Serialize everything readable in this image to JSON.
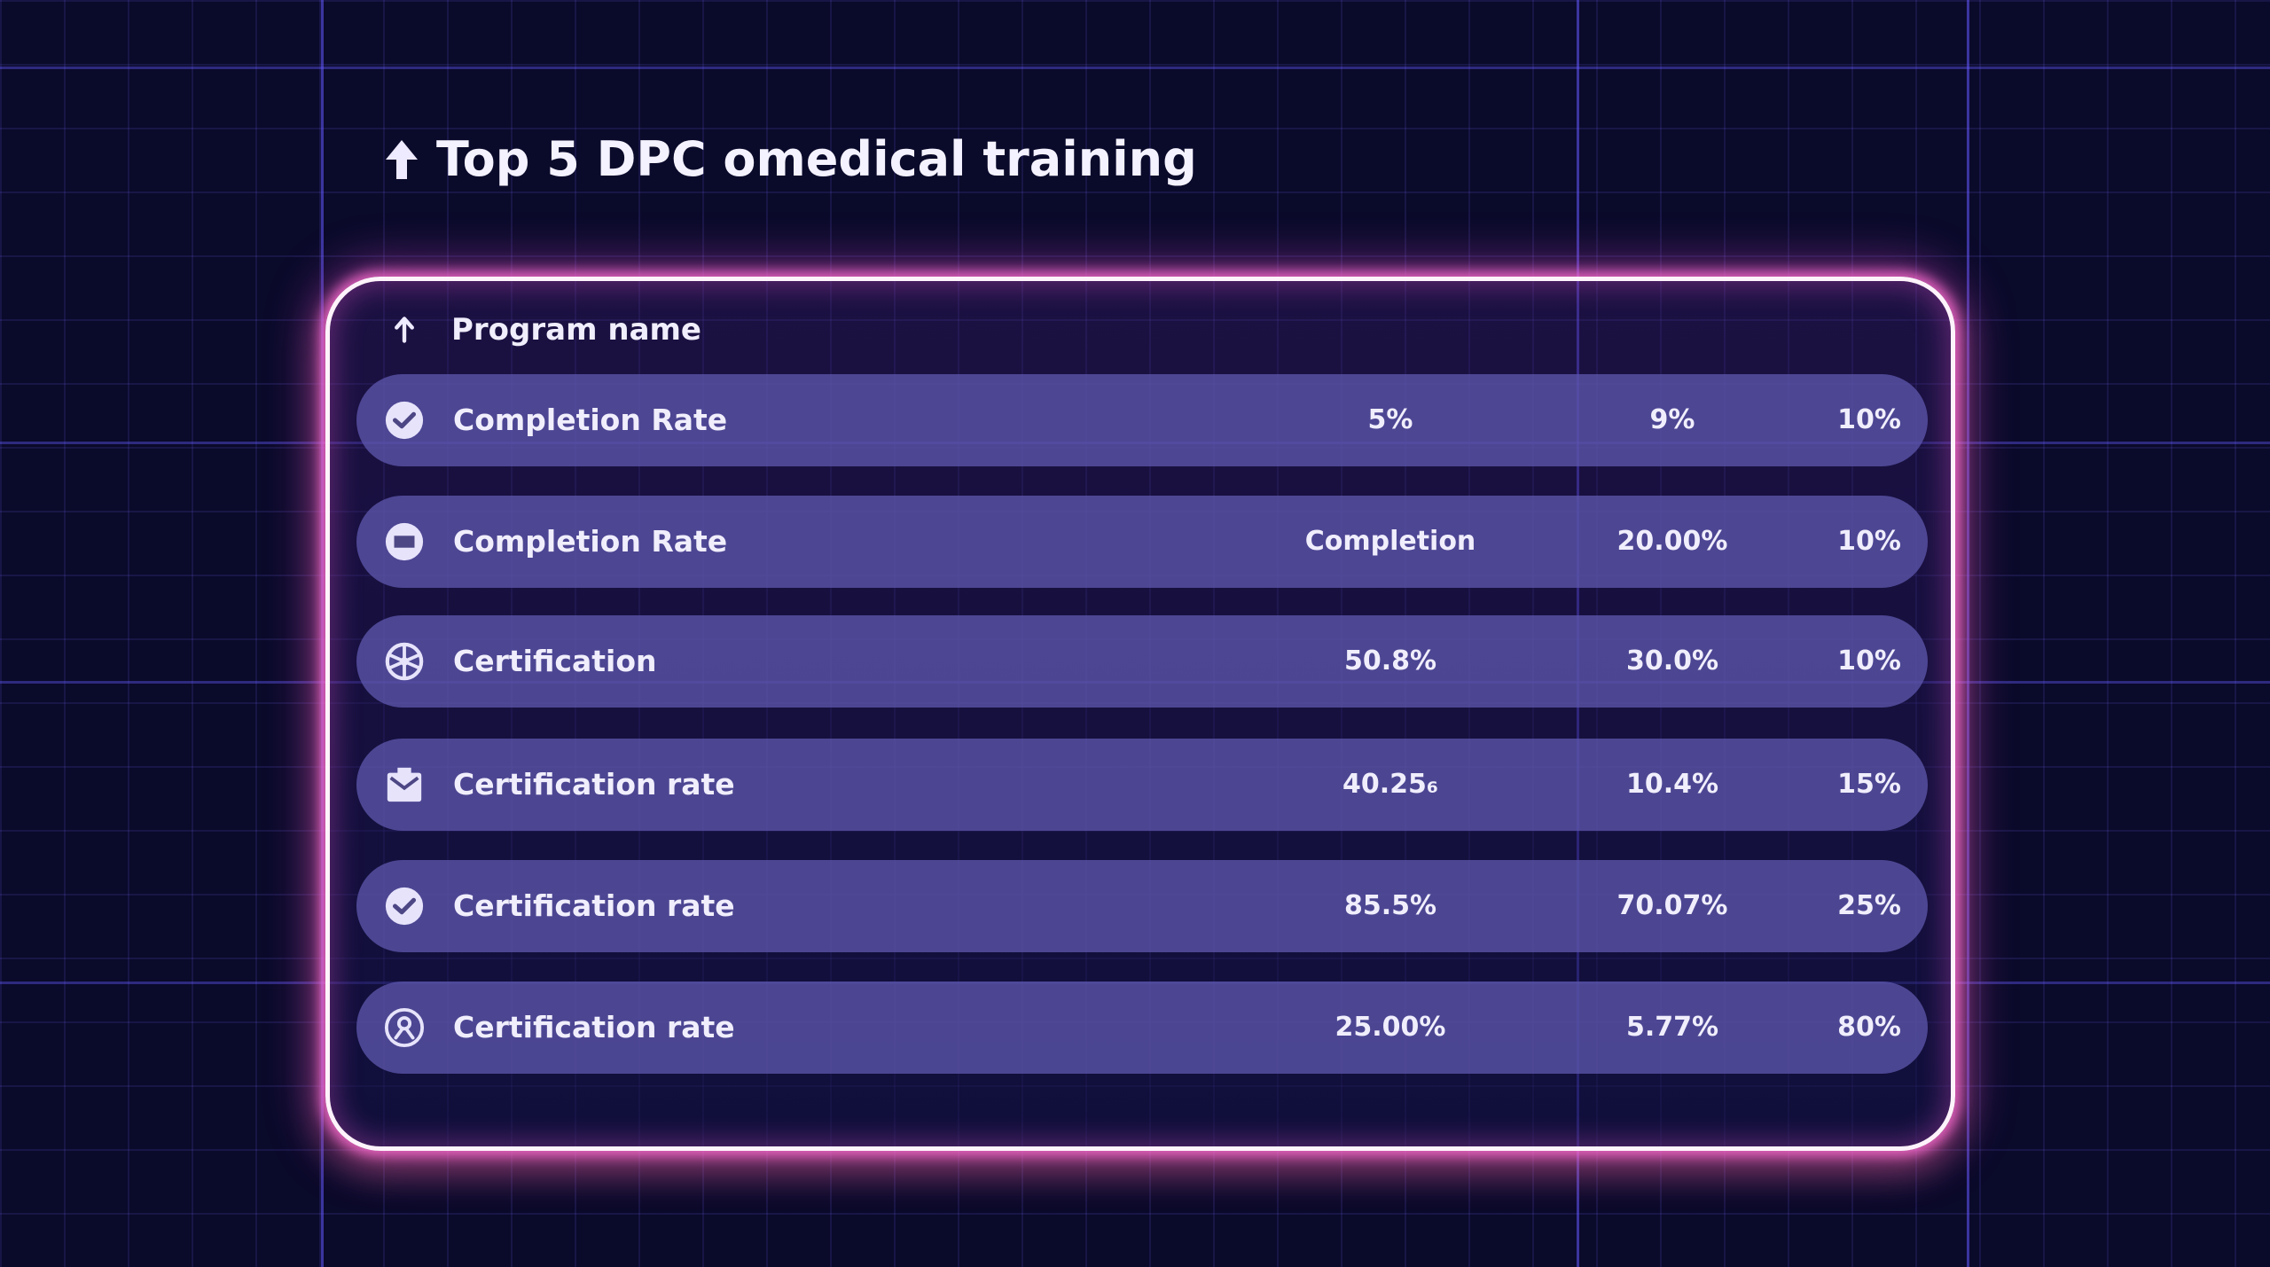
{
  "title": "Top 5 DPC omedical training",
  "header": {
    "column_label": "Program name"
  },
  "rows": [
    {
      "icon": "check-circle-icon",
      "label": "Completion Rate",
      "v1": "5%",
      "v2": "9%",
      "v3": "10%"
    },
    {
      "icon": "rectangle-circle-icon",
      "label": "Completion Rate",
      "v1": "Completion",
      "v2": "20.00%",
      "v3": "10%"
    },
    {
      "icon": "wheel-icon",
      "label": "Certification",
      "v1": "50.8%",
      "v2": "30.0%",
      "v3": "10%"
    },
    {
      "icon": "envelope-icon",
      "label": "Certification rate",
      "v1": "40.25₆",
      "v2": "10.4%",
      "v3": "15%"
    },
    {
      "icon": "check-circle-icon",
      "label": "Certification rate",
      "v1": "85.5%",
      "v2": "70.07%",
      "v3": "25%"
    },
    {
      "icon": "user-circle-icon",
      "label": "Certification rate",
      "v1": "25.00%",
      "v2": "5.77%",
      "v3": "80%"
    }
  ],
  "colors": {
    "background": "#0a0a2a",
    "row": "#5c56aa",
    "glow": "#ff6ed2"
  }
}
